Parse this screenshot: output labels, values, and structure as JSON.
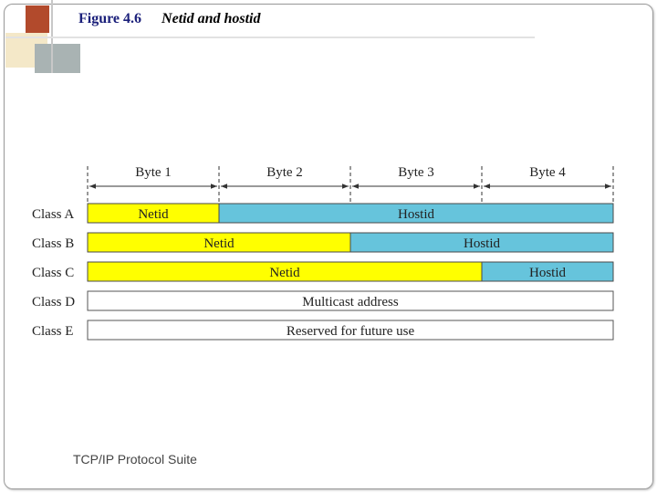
{
  "title": {
    "figure": "Figure 4.6",
    "caption": "Netid and hostid"
  },
  "footer": "TCP/IP Protocol Suite",
  "colors": {
    "netid": "#ffff00",
    "hostid": "#66c4dc",
    "plain": "#ffffff",
    "title": "#1a1f7a",
    "deco_red": "#b24a2c",
    "deco_gray": "#a9b3b3",
    "deco_cream": "#f4e8c8"
  },
  "bytes": [
    "Byte 1",
    "Byte 2",
    "Byte 3",
    "Byte 4"
  ],
  "classes": [
    {
      "label": "Class A",
      "segments": [
        {
          "text": "Netid",
          "bytes": 1,
          "kind": "netid"
        },
        {
          "text": "Hostid",
          "bytes": 3,
          "kind": "hostid"
        }
      ]
    },
    {
      "label": "Class B",
      "segments": [
        {
          "text": "Netid",
          "bytes": 2,
          "kind": "netid"
        },
        {
          "text": "Hostid",
          "bytes": 2,
          "kind": "hostid"
        }
      ]
    },
    {
      "label": "Class C",
      "segments": [
        {
          "text": "Netid",
          "bytes": 3,
          "kind": "netid"
        },
        {
          "text": "Hostid",
          "bytes": 1,
          "kind": "hostid"
        }
      ]
    },
    {
      "label": "Class D",
      "segments": [
        {
          "text": "Multicast address",
          "bytes": 4,
          "kind": "plain"
        }
      ]
    },
    {
      "label": "Class E",
      "segments": [
        {
          "text": "Reserved for future use",
          "bytes": 4,
          "kind": "plain"
        }
      ]
    }
  ]
}
